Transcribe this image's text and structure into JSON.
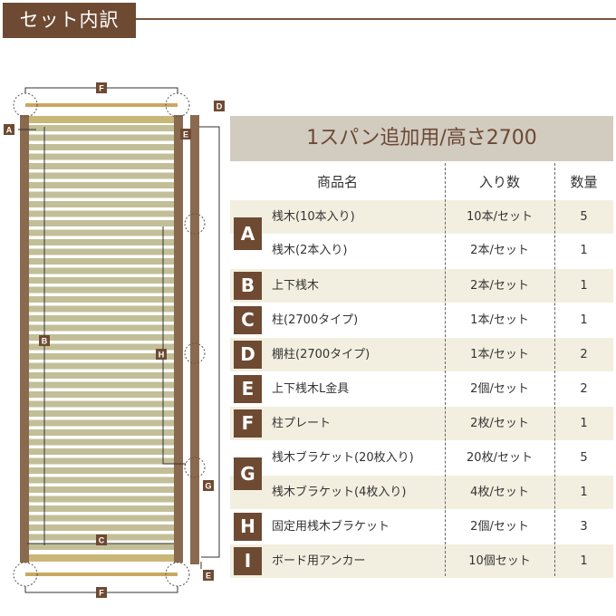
{
  "header": {
    "title": "セット内訳"
  },
  "table": {
    "title": "1スパン追加用/高さ2700",
    "columns": [
      "商品名",
      "入り数",
      "数量"
    ],
    "rows": [
      {
        "name": "桟木(10本入り)",
        "count": "10本/セット",
        "qty": "5"
      },
      {
        "name": "桟木(2本入り)",
        "count": "2本/セット",
        "qty": "1"
      },
      {
        "name": "上下桟木",
        "count": "2本/セット",
        "qty": "1"
      },
      {
        "name": "柱(2700タイプ)",
        "count": "1本/セット",
        "qty": "1"
      },
      {
        "name": "棚柱(2700タイプ)",
        "count": "1本/セット",
        "qty": "2"
      },
      {
        "name": "上下桟木L金具",
        "count": "2個/セット",
        "qty": "2"
      },
      {
        "name": "柱プレート",
        "count": "2枚/セット",
        "qty": "1"
      },
      {
        "name": "桟木ブラケット(20枚入り)",
        "count": "20枚/セット",
        "qty": "5"
      },
      {
        "name": "桟木ブラケット(4枚入り)",
        "count": "4枚/セット",
        "qty": "1"
      },
      {
        "name": "固定用桟木ブラケット",
        "count": "2個/セット",
        "qty": "3"
      },
      {
        "name": "ボード用アンカー",
        "count": "10個セット",
        "qty": "1"
      }
    ],
    "badges": [
      "A",
      "B",
      "C",
      "D",
      "E",
      "F",
      "G",
      "H",
      "I"
    ]
  },
  "diagram": {
    "labels": {
      "A": "A",
      "B": "B",
      "C": "C",
      "D": "D",
      "E": "E",
      "F": "F",
      "G": "G",
      "H": "H"
    }
  },
  "colors": {
    "brand": "#6e4a33",
    "title_band": "#d2cbc0",
    "row_alt": "#f3efe0",
    "slat": "#c2bf98",
    "post": "#8a6a4e"
  }
}
